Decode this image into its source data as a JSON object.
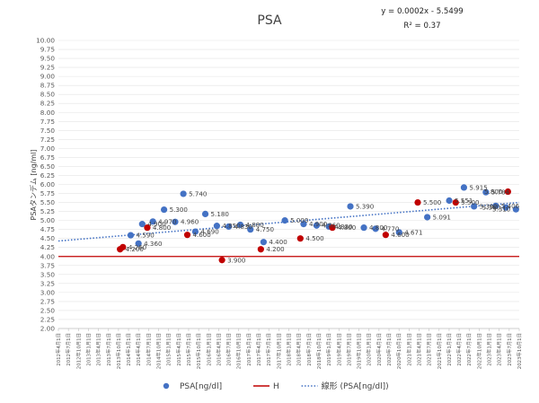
{
  "chart_data": {
    "type": "scatter",
    "title": "PSA",
    "ylabel": "PSAタンデム [ng/ml]",
    "ylim": [
      2.0,
      10.0
    ],
    "ystep": 0.25,
    "y_ticks": [
      "2.00",
      "2.25",
      "2.50",
      "2.75",
      "3.00",
      "3.25",
      "3.50",
      "3.75",
      "4.00",
      "4.25",
      "4.50",
      "4.75",
      "5.00",
      "5.25",
      "5.50",
      "5.75",
      "6.00",
      "6.25",
      "6.50",
      "6.75",
      "7.00",
      "7.25",
      "7.50",
      "7.75",
      "8.00",
      "8.25",
      "8.50",
      "8.75",
      "9.00",
      "9.25",
      "9.50",
      "9.75",
      "10.00"
    ],
    "x_ticks": [
      "2012年4月1日",
      "2012年7月1日",
      "2012年10月1日",
      "2013年1月1日",
      "2013年4月1日",
      "2013年7月1日",
      "2013年10月1日",
      "2014年1月1日",
      "2014年4月1日",
      "2014年7月1日",
      "2014年10月1日",
      "2015年1月1日",
      "2015年4月1日",
      "2015年7月1日",
      "2015年10月1日",
      "2016年1月1日",
      "2016年4月1日",
      "2016年7月1日",
      "2016年10月1日",
      "2017年1月1日",
      "2017年4月1日",
      "2017年7月1日",
      "2017年10月1日",
      "2018年1月1日",
      "2018年4月1日",
      "2018年7月1日",
      "2018年10月1日",
      "2019年1月1日",
      "2019年4月1日",
      "2019年7月1日",
      "2019年10月1日",
      "2020年1月1日",
      "2020年4月1日",
      "2020年7月1日",
      "2020年10月1日",
      "2021年1月1日",
      "2021年4月1日",
      "2021年7月1日",
      "2021年10月1日",
      "2022年1月1日",
      "2022年4月1日",
      "2022年7月1日",
      "2022年10月1日",
      "2023年1月1日",
      "2023年4月1日",
      "2023年7月1日",
      "2023年10月1日"
    ],
    "xlim": [
      "2012-04-01",
      "2023-10-01"
    ],
    "threshold_line": {
      "name": "H",
      "value": 4.0,
      "color": "#c00000"
    },
    "trendline": {
      "name": "線形 (PSA[ng/dl])",
      "equation": "y = 0.0002x - 5.5499",
      "r_squared": "R² = 0.37",
      "start": 4.43,
      "end": 5.5,
      "color": "#4472c4"
    },
    "series": [
      {
        "name": "PSA[ng/dl]",
        "color": "#4472c4",
        "points": [
          {
            "x": "2014-01-20",
            "y": 4.59,
            "label": "4.590"
          },
          {
            "x": "2014-04-01",
            "y": 4.36,
            "label": "4.360"
          },
          {
            "x": "2014-05-05",
            "y": 4.9,
            "label": "4.900"
          },
          {
            "x": "2014-08-10",
            "y": 4.97,
            "label": "4.970"
          },
          {
            "x": "2014-11-20",
            "y": 5.3,
            "label": "5.300"
          },
          {
            "x": "2015-03-01",
            "y": 4.96,
            "label": "4.960"
          },
          {
            "x": "2015-05-15",
            "y": 5.74,
            "label": "5.740"
          },
          {
            "x": "2015-09-01",
            "y": 4.69,
            "label": "4.690"
          },
          {
            "x": "2015-12-01",
            "y": 5.18,
            "label": "5.180"
          },
          {
            "x": "2016-03-15",
            "y": 4.85,
            "label": "4.850"
          },
          {
            "x": "2016-07-01",
            "y": 4.83,
            "label": "4.830"
          },
          {
            "x": "2016-10-15",
            "y": 4.88,
            "label": "4.880"
          },
          {
            "x": "2017-01-15",
            "y": 4.75,
            "label": "4.750"
          },
          {
            "x": "2017-05-15",
            "y": 4.4,
            "label": "4.400"
          },
          {
            "x": "2017-11-25",
            "y": 5.0,
            "label": "5.000"
          },
          {
            "x": "2018-05-15",
            "y": 4.9,
            "label": "4.900"
          },
          {
            "x": "2018-09-10",
            "y": 4.86,
            "label": "4.860"
          },
          {
            "x": "2019-01-01",
            "y": 4.83,
            "label": "4.830"
          },
          {
            "x": "2019-07-15",
            "y": 5.39,
            "label": "5.390"
          },
          {
            "x": "2019-11-15",
            "y": 4.8,
            "label": "4.800"
          },
          {
            "x": "2020-03-01",
            "y": 4.77,
            "label": "4.770"
          },
          {
            "x": "2020-10-01",
            "y": 4.671,
            "label": "4.671"
          },
          {
            "x": "2021-06-15",
            "y": 5.091,
            "label": "5.091"
          },
          {
            "x": "2022-01-01",
            "y": 5.551,
            "label": "5.551"
          },
          {
            "x": "2022-05-15",
            "y": 5.915,
            "label": "5.915"
          },
          {
            "x": "2022-08-15",
            "y": 5.392,
            "label": "5.392"
          },
          {
            "x": "2022-12-01",
            "y": 5.784,
            "label": "5.784"
          },
          {
            "x": "2023-03-01",
            "y": 5.406,
            "label": "5.406"
          },
          {
            "x": "2023-06-01",
            "y": 5.36,
            "label": "5.360"
          },
          {
            "x": "2023-09-01",
            "y": 5.31,
            "label": "5.310"
          }
        ]
      },
      {
        "name": "H",
        "color": "#c00000",
        "points": [
          {
            "x": "2013-10-15",
            "y": 4.2,
            "label": "4.200"
          },
          {
            "x": "2013-11-10",
            "y": 4.26,
            "label": "4.260"
          },
          {
            "x": "2014-06-20",
            "y": 4.8,
            "label": "4.800"
          },
          {
            "x": "2015-06-20",
            "y": 4.6,
            "label": "4.600"
          },
          {
            "x": "2016-05-01",
            "y": 3.9,
            "label": "3.900"
          },
          {
            "x": "2017-04-20",
            "y": 4.2,
            "label": "4.200"
          },
          {
            "x": "2018-04-15",
            "y": 4.5,
            "label": "4.500"
          },
          {
            "x": "2019-02-01",
            "y": 4.8,
            "label": "4.800"
          },
          {
            "x": "2020-06-01",
            "y": 4.6,
            "label": "4.600"
          },
          {
            "x": "2021-03-20",
            "y": 5.5,
            "label": "5.500"
          },
          {
            "x": "2022-03-01",
            "y": 5.5,
            "label": "5.500"
          },
          {
            "x": "2023-06-20",
            "y": 5.8,
            "label": "5.800"
          }
        ]
      }
    ],
    "legend": [
      {
        "name": "PSA[ng/dl]",
        "kind": "marker",
        "color": "#4472c4"
      },
      {
        "name": "H",
        "kind": "line",
        "color": "#c00000"
      },
      {
        "name": "線形 (PSA[ng/dl])",
        "kind": "dotted",
        "color": "#4472c4"
      }
    ]
  }
}
